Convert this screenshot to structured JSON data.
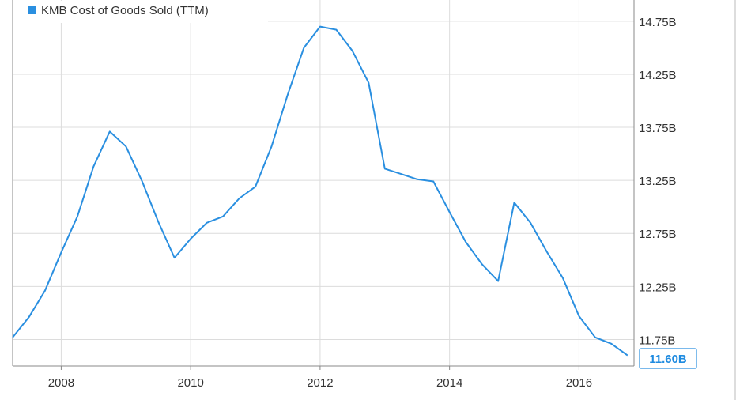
{
  "colors": {
    "series": "#2a8fe0",
    "grid": "#dcdcdc",
    "axis": "#888888",
    "badge_border": "#2a8fe0"
  },
  "legend": {
    "label": "KMB Cost of Goods Sold (TTM)"
  },
  "last_value_label": "11.60B",
  "chart_data": {
    "type": "line",
    "title": "",
    "xlabel": "",
    "ylabel": "",
    "x_ticks": [
      "2008",
      "2010",
      "2012",
      "2014",
      "2016"
    ],
    "x_tick_values": [
      2008,
      2010,
      2012,
      2014,
      2016
    ],
    "y_ticks": [
      "11.75B",
      "12.25B",
      "12.75B",
      "13.25B",
      "13.75B",
      "14.25B",
      "14.75B"
    ],
    "y_tick_values": [
      11.75,
      12.25,
      12.75,
      13.25,
      13.75,
      14.25,
      14.75
    ],
    "xlim": [
      2007.25,
      2016.85
    ],
    "ylim": [
      11.5,
      14.95
    ],
    "legend_position": "top-left",
    "grid": true,
    "series": [
      {
        "name": "KMB Cost of Goods Sold (TTM)",
        "x": [
          2007.25,
          2007.5,
          2007.75,
          2008.0,
          2008.25,
          2008.5,
          2008.75,
          2009.0,
          2009.25,
          2009.5,
          2009.75,
          2010.0,
          2010.25,
          2010.5,
          2010.75,
          2011.0,
          2011.25,
          2011.5,
          2011.75,
          2012.0,
          2012.25,
          2012.5,
          2012.75,
          2013.0,
          2013.25,
          2013.5,
          2013.75,
          2014.0,
          2014.25,
          2014.5,
          2014.75,
          2015.0,
          2015.25,
          2015.5,
          2015.75,
          2016.0,
          2016.25,
          2016.5,
          2016.75
        ],
        "values": [
          11.77,
          11.96,
          12.21,
          12.57,
          12.91,
          13.38,
          13.71,
          13.57,
          13.24,
          12.86,
          12.52,
          12.7,
          12.85,
          12.91,
          13.08,
          13.19,
          13.57,
          14.06,
          14.5,
          14.7,
          14.67,
          14.47,
          14.17,
          13.36,
          13.31,
          13.26,
          13.24,
          12.95,
          12.67,
          12.46,
          12.3,
          13.04,
          12.85,
          12.58,
          12.33,
          11.97,
          11.77,
          11.71,
          11.6
        ]
      }
    ]
  }
}
